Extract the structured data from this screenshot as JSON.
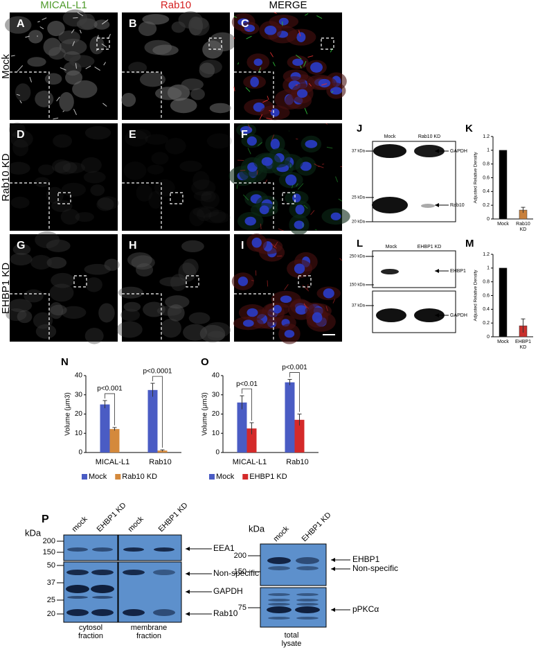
{
  "micrographs": {
    "columns": [
      "MICAL-L1",
      "Rab10",
      "MERGE"
    ],
    "rows": [
      "Mock",
      "Rab10 KD",
      "EHBP1 KD"
    ],
    "letters": [
      "A",
      "B",
      "C",
      "D",
      "E",
      "F",
      "G",
      "H",
      "I"
    ]
  },
  "blot_j": {
    "letter": "J",
    "lanes": [
      "Mock",
      "Rab10 KD"
    ],
    "markers": [
      "37 kDa",
      "25 kDa",
      "20 kDa"
    ],
    "bands": [
      "GAPDH",
      "Rab10"
    ]
  },
  "blot_l": {
    "letter": "L",
    "lanes": [
      "Mock",
      "EHBP1 KD"
    ],
    "markers": [
      "250 kDa",
      "150 kDa",
      "37 kDa"
    ],
    "bands": [
      "EHBP1",
      "GAPDH"
    ]
  },
  "blot_p": {
    "letter": "P",
    "unit": "kDa",
    "lanes": [
      "mock",
      "EHBP1 KD",
      "mock",
      "EHBP1 KD"
    ],
    "markers": [
      "200",
      "150",
      "50",
      "37",
      "25",
      "20"
    ],
    "bands": [
      "EEA1",
      "Non-specific",
      "GAPDH",
      "Rab10"
    ],
    "fractions": [
      "cytosol fraction",
      "membrane fraction"
    ]
  },
  "blot_p2": {
    "unit": "kDa",
    "lanes": [
      "mock",
      "EHBP1 KD"
    ],
    "markers": [
      "200",
      "150",
      "75"
    ],
    "bands": [
      "EHBP1",
      "Non-specific",
      "pPKCα"
    ],
    "fraction": "total lysate"
  },
  "chart_data": [
    {
      "type": "bar",
      "letter": "K",
      "ylabel": "Adjusted Relative Density",
      "categories": [
        "Mock",
        "Rab10 KD"
      ],
      "values": [
        1,
        0.13
      ],
      "errors": [
        null,
        0.04
      ],
      "colors": [
        "#000000",
        "#c8803c"
      ],
      "ylim": [
        0,
        1.2
      ],
      "yticks": [
        0,
        0.2,
        0.4,
        0.6,
        0.8,
        1,
        1.2
      ]
    },
    {
      "type": "bar",
      "letter": "M",
      "ylabel": "Adjusted Relative Density",
      "categories": [
        "Mock",
        "EHBP1 KD"
      ],
      "values": [
        1,
        0.16
      ],
      "errors": [
        null,
        0.1
      ],
      "colors": [
        "#000000",
        "#c8302c"
      ],
      "ylim": [
        0,
        1.2
      ],
      "yticks": [
        0,
        0.2,
        0.4,
        0.6,
        0.8,
        1,
        1.2
      ]
    },
    {
      "type": "bar",
      "letter": "N",
      "ylabel": "Volume (μm3)",
      "categories": [
        "MICAL-L1",
        "Rab10"
      ],
      "series": [
        {
          "name": "Mock",
          "color": "#4a5cc4",
          "values": [
            25,
            32.5
          ],
          "errors": [
            2,
            3.5
          ]
        },
        {
          "name": "Rab10 KD",
          "color": "#d4893c",
          "values": [
            12.2,
            1
          ],
          "errors": [
            0.8,
            0.4
          ]
        }
      ],
      "annotations": [
        "p<0.001",
        "p<0.0001"
      ],
      "ylim": [
        0,
        40
      ],
      "yticks": [
        0,
        10,
        20,
        30,
        40
      ]
    },
    {
      "type": "bar",
      "letter": "O",
      "ylabel": "Volume (μm3)",
      "categories": [
        "MICAL-L1",
        "Rab10"
      ],
      "series": [
        {
          "name": "Mock",
          "color": "#4a5cc4",
          "values": [
            26,
            36.5
          ],
          "errors": [
            3.5,
            1.5
          ]
        },
        {
          "name": "EHBP1 KD",
          "color": "#d42a2a",
          "values": [
            12.5,
            17
          ],
          "errors": [
            3,
            3
          ]
        }
      ],
      "annotations": [
        "p<0.01",
        "p<0.001"
      ],
      "ylim": [
        0,
        40
      ],
      "yticks": [
        0,
        10,
        20,
        30,
        40
      ]
    }
  ]
}
